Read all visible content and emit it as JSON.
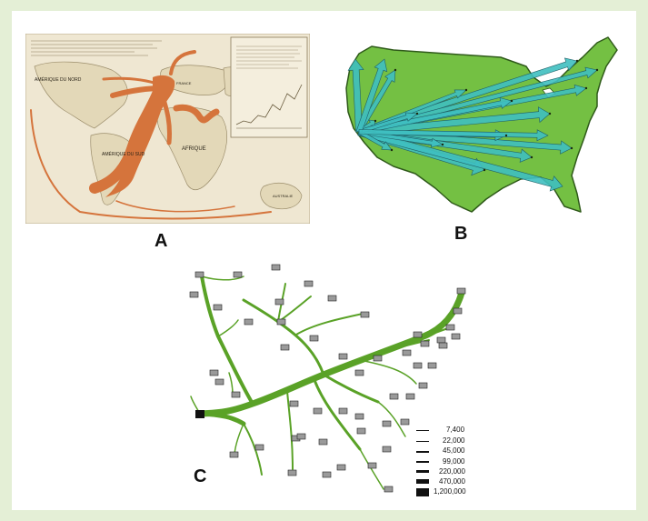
{
  "panels": [
    {
      "label": "A"
    },
    {
      "label": "B"
    },
    {
      "label": "C"
    }
  ],
  "map_a": {
    "regions": [
      "AMÉRIQUE DU NORD",
      "AMÉRIQUE DU SUD",
      "AFRIQUE",
      "FRANCE",
      "AUSTRALIE"
    ],
    "flow_color": "#d5743c",
    "paper_color": "#efe7d2"
  },
  "map_b": {
    "land_color": "#74c043",
    "arrow_color": "#3fbfc0"
  },
  "tree_c": {
    "branch_color": "#5aa227",
    "legend": [
      {
        "label": "7,400"
      },
      {
        "label": "22,000"
      },
      {
        "label": "45,000"
      },
      {
        "label": "99,000"
      },
      {
        "label": "220,000"
      },
      {
        "label": "470,000"
      },
      {
        "label": "1,200,000"
      }
    ]
  }
}
